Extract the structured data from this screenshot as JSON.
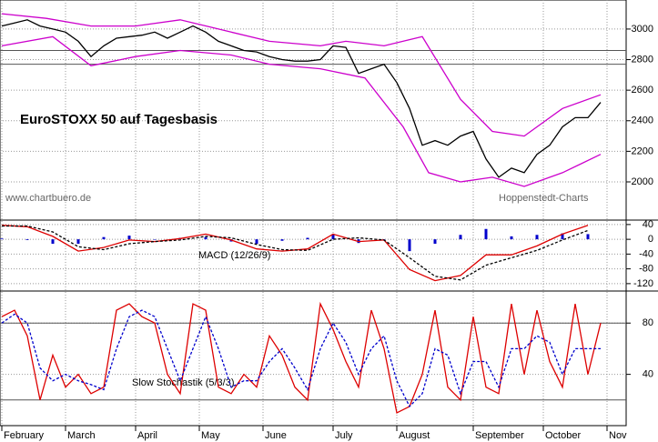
{
  "chart_data": [
    {
      "type": "line",
      "title": "EuroSTOXX 50 auf Tagesbasis",
      "annotations": [
        "www.chartbuero.de",
        "Hoppenstedt-Charts"
      ],
      "ylim": [
        1750,
        3190
      ],
      "yticks": [
        2000,
        2200,
        2400,
        2600,
        2800,
        3000
      ],
      "grid": true,
      "hlines": [
        2860,
        2770
      ],
      "series": [
        {
          "color": "#000000",
          "values": [
            3020,
            3040,
            3060,
            3020,
            3000,
            2980,
            2920,
            2820,
            2890,
            2940,
            2950,
            2960,
            2980,
            2940,
            2980,
            3020,
            2980,
            2920,
            2890,
            2860,
            2850,
            2820,
            2800,
            2790,
            2790,
            2800,
            2890,
            2880,
            2710,
            2740,
            2770,
            2650,
            2480,
            2240,
            2270,
            2240,
            2300,
            2330,
            2150,
            2030,
            2090,
            2060,
            2180,
            2240,
            2360,
            2420,
            2420,
            2520
          ]
        },
        {
          "color": "#cc00cc",
          "x": [
            0,
            3.5,
            7,
            10.5,
            14,
            18,
            21,
            25,
            27,
            30,
            33,
            36,
            38.5,
            41,
            44,
            47
          ],
          "values": [
            3100,
            3070,
            3020,
            3020,
            3060,
            2980,
            2920,
            2890,
            2920,
            2890,
            2950,
            2540,
            2330,
            2300,
            2480,
            2570
          ]
        },
        {
          "color": "#cc00cc",
          "x": [
            0,
            4,
            7,
            10.5,
            14,
            18,
            21,
            25,
            28.5,
            31.5,
            33.5,
            36,
            38.5,
            41,
            44,
            47
          ],
          "values": [
            2890,
            2950,
            2760,
            2820,
            2860,
            2830,
            2770,
            2740,
            2680,
            2360,
            2060,
            2000,
            2030,
            1970,
            2060,
            2180
          ]
        }
      ]
    },
    {
      "type": "line",
      "title": "MACD (12/26/9)",
      "ylim": [
        -140,
        52
      ],
      "yticks": [
        -120,
        -80,
        -40,
        0,
        40
      ],
      "grid": true,
      "x": [
        0,
        2,
        4,
        6,
        8,
        10,
        12,
        14,
        16,
        18,
        20,
        22,
        24,
        26,
        28,
        30,
        32,
        34,
        36,
        38,
        40,
        42,
        44,
        46
      ],
      "series": [
        {
          "color": "#dd0000",
          "values": [
            38,
            34,
            8,
            -32,
            -22,
            -2,
            -6,
            2,
            14,
            -2,
            -26,
            -32,
            -26,
            14,
            -6,
            -2,
            -82,
            -112,
            -98,
            -42,
            -42,
            -18,
            14,
            38
          ]
        },
        {
          "color": "#000000",
          "dashed": true,
          "values": [
            36,
            36,
            20,
            -20,
            -28,
            -12,
            -6,
            -2,
            8,
            4,
            -14,
            -28,
            -30,
            0,
            4,
            -2,
            -50,
            -100,
            -110,
            -70,
            -50,
            -30,
            -2,
            24
          ]
        }
      ],
      "histogram": {
        "color": "#0000cc",
        "values": [
          2,
          -2,
          -12,
          -12,
          6,
          10,
          0,
          4,
          6,
          -6,
          -12,
          -4,
          4,
          14,
          -10,
          0,
          -32,
          -12,
          12,
          28,
          8,
          12,
          16,
          14
        ]
      }
    },
    {
      "type": "line",
      "title": "Slow Stochastik (5/3/3)",
      "ylim": [
        0,
        105
      ],
      "yticks": [
        40,
        80
      ],
      "grid": true,
      "hlines": [
        80,
        20
      ],
      "xlim": [
        0,
        48
      ],
      "xticks": [
        {
          "value": 0,
          "label": "February"
        },
        {
          "value": 5,
          "label": "March"
        },
        {
          "value": 10.5,
          "label": "April"
        },
        {
          "value": 15.5,
          "label": "May"
        },
        {
          "value": 20.5,
          "label": "June"
        },
        {
          "value": 26,
          "label": "July"
        },
        {
          "value": 31,
          "label": "August"
        },
        {
          "value": 37,
          "label": "September"
        },
        {
          "value": 42.5,
          "label": "October"
        },
        {
          "value": 47.5,
          "label": "Nov"
        }
      ],
      "series": [
        {
          "color": "#dd0000",
          "values": [
            85,
            90,
            70,
            20,
            55,
            30,
            40,
            25,
            30,
            90,
            95,
            85,
            80,
            40,
            25,
            95,
            90,
            30,
            25,
            40,
            30,
            70,
            55,
            30,
            20,
            95,
            75,
            50,
            30,
            90,
            60,
            10,
            15,
            40,
            90,
            30,
            20,
            85,
            30,
            25,
            95,
            40,
            90,
            50,
            30,
            95,
            40,
            80
          ]
        },
        {
          "color": "#0000cc",
          "dashed": true,
          "values": [
            80,
            87,
            80,
            45,
            35,
            40,
            35,
            32,
            28,
            60,
            85,
            90,
            85,
            60,
            35,
            60,
            85,
            60,
            30,
            35,
            35,
            50,
            60,
            45,
            28,
            60,
            80,
            65,
            40,
            60,
            70,
            35,
            15,
            25,
            60,
            55,
            25,
            50,
            50,
            30,
            60,
            60,
            70,
            65,
            40,
            60,
            60,
            60
          ]
        }
      ]
    }
  ]
}
